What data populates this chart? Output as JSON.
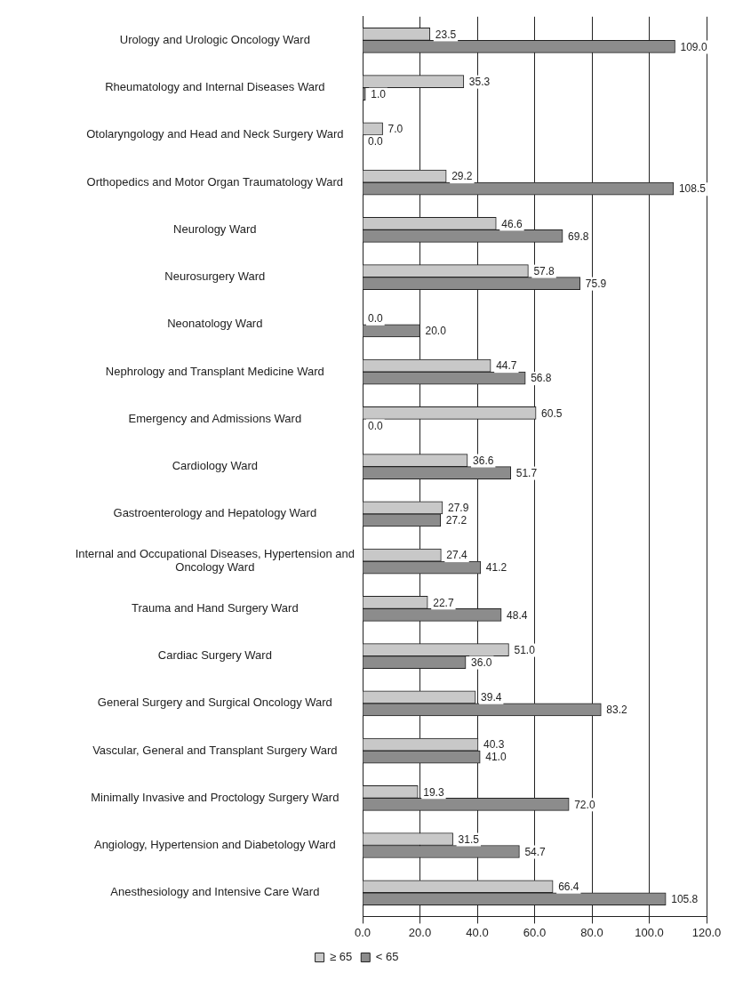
{
  "chart_data": {
    "type": "bar",
    "orientation": "horizontal",
    "categories": [
      "Urology and Urologic Oncology Ward",
      "Rheumatology and Internal Diseases Ward",
      "Otolaryngology and Head and Neck Surgery Ward",
      "Orthopedics and Motor Organ Traumatology Ward",
      "Neurology Ward",
      "Neurosurgery Ward",
      "Neonatology Ward",
      "Nephrology and Transplant Medicine Ward",
      "Emergency and Admissions Ward",
      "Cardiology Ward",
      "Gastroenterology and Hepatology Ward",
      "Internal and Occupational Diseases, Hypertension and Oncology Ward",
      "Trauma and Hand Surgery Ward",
      "Cardiac Surgery Ward",
      "General Surgery and Surgical Oncology Ward",
      "Vascular, General and Transplant Surgery Ward",
      "Minimally Invasive and Proctology Surgery Ward",
      "Angiology, Hypertension and Diabetology Ward",
      "Anesthesiology and Intensive Care Ward"
    ],
    "series": [
      {
        "name": "≥ 65",
        "color": "#c8c8c8",
        "values": [
          23.5,
          35.3,
          7.0,
          29.2,
          46.6,
          57.8,
          0.0,
          44.7,
          60.5,
          36.6,
          27.9,
          27.4,
          22.7,
          51.0,
          39.4,
          40.3,
          19.3,
          31.5,
          66.4
        ],
        "value_labels": [
          "23.5",
          "35.3",
          "7.0",
          "29.2",
          "46.6",
          "57.8",
          "0.0",
          "44.7",
          "60.5",
          "36.6",
          "27.9",
          "27.4",
          "22.7",
          "51.0",
          "39.4",
          "40.3",
          "19.3",
          "31.5",
          "66.4"
        ]
      },
      {
        "name": "< 65",
        "color": "#8c8c8c",
        "values": [
          109.0,
          1.0,
          0.0,
          108.5,
          69.8,
          75.9,
          20.0,
          56.8,
          0.0,
          51.7,
          27.2,
          41.2,
          48.4,
          36.0,
          83.2,
          41.0,
          72.0,
          54.7,
          105.8
        ],
        "value_labels": [
          "109.0",
          "1.0",
          "0.0",
          "108.5",
          "69.8",
          "75.9",
          "20.0",
          "56.8",
          "0.0",
          "51.7",
          "27.2",
          "41.2",
          "48.4",
          "36.0",
          "83.2",
          "41.0",
          "72.0",
          "54.7",
          "105.8"
        ]
      }
    ],
    "xlim": [
      0,
      120
    ],
    "xticks": [
      {
        "value": 0,
        "label": "0.0"
      },
      {
        "value": 20,
        "label": "20.0"
      },
      {
        "value": 40,
        "label": "40.0"
      },
      {
        "value": 60,
        "label": "60.0"
      },
      {
        "value": 80,
        "label": "80.0"
      },
      {
        "value": 100,
        "label": "100.0"
      },
      {
        "value": 120,
        "label": "120.0"
      }
    ],
    "grid": "x",
    "legend": "bottom"
  }
}
